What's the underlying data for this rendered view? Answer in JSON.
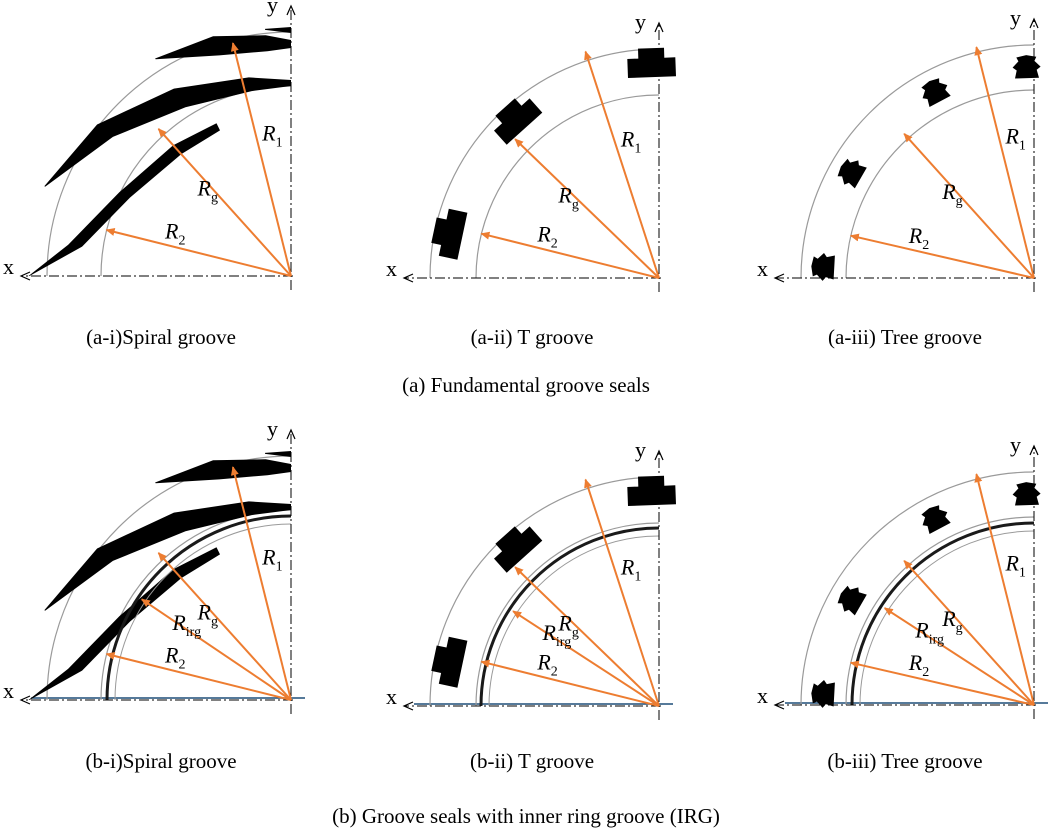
{
  "colors": {
    "arrow": "#ed7d31",
    "groove": "#000000",
    "outline": "#9a9a9a",
    "ring": "#1a1a1a",
    "base": "#1f4e79"
  },
  "section_a": {
    "caption": "(a) Fundamental groove seals"
  },
  "section_b": {
    "caption": "(b) Groove seals with inner ring groove (IRG)"
  },
  "labels": {
    "x_axis": "x",
    "y_axis": "y",
    "R": "R",
    "sub_1": "1",
    "sub_2": "2",
    "sub_g": "g",
    "sub_irg": "irg"
  },
  "panels": [
    {
      "id": "a-i",
      "caption": "(a-i)Spiral groove",
      "groove": "spiral",
      "irg": false
    },
    {
      "id": "a-ii",
      "caption": "(a-ii) T groove",
      "groove": "t",
      "irg": false
    },
    {
      "id": "a-iii",
      "caption": "(a-iii) Tree groove",
      "groove": "tree",
      "irg": false
    },
    {
      "id": "b-i",
      "caption": "(b-i)Spiral groove",
      "groove": "spiral",
      "irg": true
    },
    {
      "id": "b-ii",
      "caption": "(b-ii) T groove",
      "groove": "t",
      "irg": true
    },
    {
      "id": "b-iii",
      "caption": "(b-iii) Tree groove",
      "groove": "tree",
      "irg": true
    }
  ]
}
